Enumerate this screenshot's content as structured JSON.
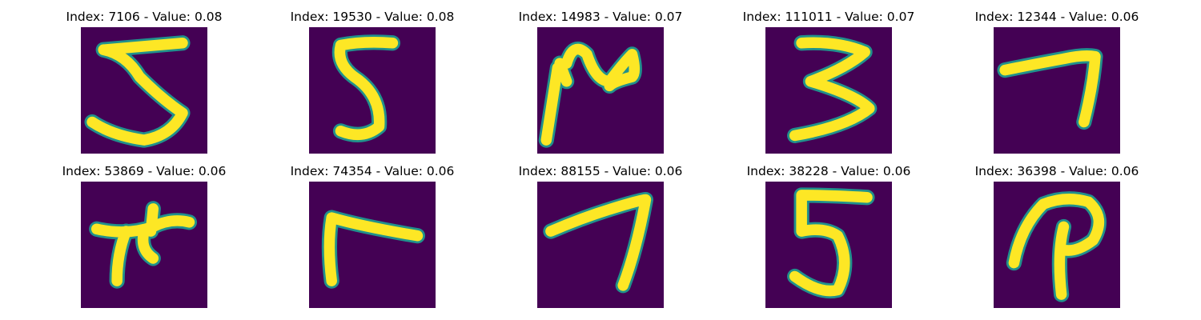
{
  "grid": [
    {
      "title": "Index: 7106 - Value: 0.08",
      "index": 7106,
      "value": 0.08,
      "glyph": "five-wide"
    },
    {
      "title": "Index: 19530 - Value: 0.08",
      "index": 19530,
      "value": 0.08,
      "glyph": "five"
    },
    {
      "title": "Index: 14983 - Value: 0.07",
      "index": 14983,
      "value": 0.07,
      "glyph": "scribble"
    },
    {
      "title": "Index: 111011 - Value: 0.07",
      "index": 111011,
      "value": 0.07,
      "glyph": "three"
    },
    {
      "title": "Index: 12344 - Value: 0.06",
      "index": 12344,
      "value": 0.06,
      "glyph": "seven-thin"
    },
    {
      "title": "Index: 53869 - Value: 0.06",
      "index": 53869,
      "value": 0.06,
      "glyph": "blob"
    },
    {
      "title": "Index: 74354 - Value: 0.06",
      "index": 74354,
      "value": 0.06,
      "glyph": "r-shape"
    },
    {
      "title": "Index: 88155 - Value: 0.06",
      "index": 88155,
      "value": 0.06,
      "glyph": "seven"
    },
    {
      "title": "Index: 38228 - Value: 0.06",
      "index": 38228,
      "value": 0.06,
      "glyph": "five-tall"
    },
    {
      "title": "Index: 36398 - Value: 0.06",
      "index": 36398,
      "value": 0.06,
      "glyph": "p-shape"
    }
  ],
  "colors": {
    "background": "#440154",
    "edge": "#21918c",
    "ink": "#fde725"
  }
}
